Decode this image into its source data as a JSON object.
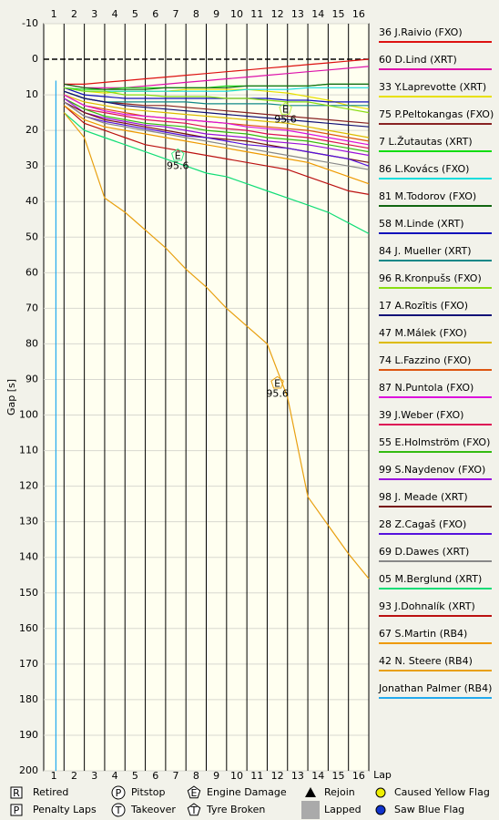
{
  "chart_data": {
    "type": "line",
    "y_label": "Gap [s]",
    "x_label": "Lap",
    "x": [
      1,
      2,
      3,
      4,
      5,
      6,
      7,
      8,
      9,
      10,
      11,
      12,
      13,
      14,
      15,
      16
    ],
    "xlim": [
      0,
      16
    ],
    "xticks": [
      1,
      2,
      3,
      4,
      5,
      6,
      7,
      8,
      9,
      10,
      11,
      12,
      13,
      14,
      15,
      16
    ],
    "ylim": [
      200,
      -10
    ],
    "yticks": [
      -10,
      0,
      10,
      20,
      30,
      40,
      50,
      60,
      70,
      80,
      90,
      100,
      110,
      120,
      130,
      140,
      150,
      160,
      170,
      180,
      190,
      200
    ],
    "grid": true,
    "legend": "right",
    "series": [
      {
        "name": "36 J.Raivio (FXO)",
        "color": "#dd1111",
        "values": [
          7,
          7,
          6.5,
          6,
          5.5,
          5,
          4.5,
          4,
          3.5,
          3,
          2.5,
          2,
          1.5,
          1,
          0.5,
          0
        ]
      },
      {
        "name": "60 D.Lind (XRT)",
        "color": "#dd11aa",
        "values": [
          7,
          8,
          8,
          8,
          7.5,
          7,
          6.5,
          6,
          5.5,
          5,
          4.5,
          4,
          3.5,
          3,
          2.5,
          2
        ]
      },
      {
        "name": "33 Y.Laprevotte (XRT)",
        "color": "#e8e000",
        "values": [
          8,
          9,
          9.5,
          9,
          9,
          9,
          8.5,
          8.5,
          8.5,
          8.5,
          9,
          9.5,
          10.5,
          11.5,
          13,
          14
        ]
      },
      {
        "name": "75 P.Peltokangas (FXO)",
        "color": "#882222",
        "values": [
          9,
          11,
          12,
          12.5,
          13,
          13,
          13.5,
          14,
          14.5,
          15,
          15.5,
          16,
          16.5,
          17,
          17.5,
          18
        ]
      },
      {
        "name": "7 L.Žutautas (XRT)",
        "color": "#11dd11",
        "values": [
          8,
          8.5,
          8.5,
          8,
          8,
          8,
          8,
          8,
          7.5,
          7.5,
          7.5,
          7.5,
          7.5,
          7,
          7,
          7
        ]
      },
      {
        "name": "86 L.Kovács (FXO)",
        "color": "#11dddd",
        "values": [
          8,
          9,
          9,
          9,
          9,
          9,
          9,
          9,
          9,
          8.5,
          8.5,
          8.5,
          8,
          8,
          8,
          8
        ]
      },
      {
        "name": "81 M.Todorov (FXO)",
        "color": "#116611",
        "values": [
          7,
          8,
          8.5,
          8.5,
          8.5,
          8,
          8,
          8,
          8,
          7.5,
          7.5,
          7.5,
          7.5,
          7,
          7,
          7
        ]
      },
      {
        "name": "58 M.Linde (XRT)",
        "color": "#1111bb",
        "values": [
          8,
          10,
          10.5,
          11,
          11,
          11,
          11,
          11,
          11,
          11,
          11,
          11.5,
          11.5,
          12,
          12,
          12
        ]
      },
      {
        "name": "84 J. Mueller (XRT)",
        "color": "#118888",
        "values": [
          9,
          11,
          12,
          12,
          12,
          12,
          12,
          12.5,
          12.5,
          12.5,
          12.5,
          13,
          13,
          13,
          13,
          13
        ]
      },
      {
        "name": "96 R.Kronpušs (FXO)",
        "color": "#88dd11",
        "values": [
          8,
          9,
          9,
          10,
          10,
          10.5,
          10.5,
          10.5,
          11,
          11,
          11.5,
          12,
          12,
          13,
          14,
          15
        ]
      },
      {
        "name": "17 A.Rozītis (FXO)",
        "color": "#111177",
        "values": [
          9,
          11,
          12,
          13,
          13.5,
          14,
          14.5,
          15,
          15.5,
          16,
          16.5,
          17,
          17.5,
          18,
          18.5,
          19
        ]
      },
      {
        "name": "47 M.Málek (FXO)",
        "color": "#ddbb00",
        "values": [
          10,
          12,
          13,
          14,
          14.5,
          15,
          15.5,
          16,
          16.5,
          17,
          17.5,
          18,
          19,
          20,
          21,
          22
        ]
      },
      {
        "name": "74 L.Fazzino (FXO)",
        "color": "#dd5511",
        "values": [
          10,
          13,
          14,
          15,
          16,
          16.5,
          17,
          17.5,
          18,
          18.5,
          19,
          19.5,
          20,
          21,
          22,
          23
        ]
      },
      {
        "name": "87 N.Puntola (FXO)",
        "color": "#dd11dd",
        "values": [
          10,
          13,
          14.5,
          15.5,
          16,
          16.5,
          17,
          17.5,
          18,
          19,
          19.5,
          20,
          21,
          22,
          23,
          24
        ]
      },
      {
        "name": "39 J.Weber (FXO)",
        "color": "#dd1155",
        "values": [
          11,
          14,
          15,
          16,
          17,
          17.5,
          18,
          19,
          19.5,
          20,
          21,
          21.5,
          22,
          23,
          24,
          25
        ]
      },
      {
        "name": "55 E.Holmström (FXO)",
        "color": "#33bb11",
        "values": [
          11,
          14,
          16,
          17,
          18,
          18.5,
          19,
          20,
          20.5,
          21,
          22,
          22.5,
          23,
          24,
          25,
          26
        ]
      },
      {
        "name": "99 S.Naydenov (FXO)",
        "color": "#9911dd",
        "values": [
          11,
          15,
          16.5,
          17.5,
          18.5,
          19,
          20,
          21,
          21.5,
          22,
          23,
          23.5,
          24,
          25,
          26,
          27
        ]
      },
      {
        "name": "98 J. Meade (XRT)",
        "color": "#771111",
        "values": [
          12,
          15,
          17,
          18,
          19,
          20,
          21,
          22,
          22.5,
          23,
          24,
          25,
          26,
          27,
          28,
          29
        ]
      },
      {
        "name": "28 Z.Cagaš (FXO)",
        "color": "#5511dd",
        "values": [
          12,
          16,
          17.5,
          18.5,
          19.5,
          20.5,
          21.5,
          22,
          23,
          24,
          24.5,
          25,
          26,
          27,
          28,
          30
        ]
      },
      {
        "name": "69 D.Dawes (XRT)",
        "color": "#888888",
        "values": [
          12,
          16,
          18,
          19,
          20,
          21,
          22,
          23,
          24,
          25,
          26,
          27,
          28,
          29,
          30,
          31
        ]
      },
      {
        "name": "05 M.Berglund (XRT)",
        "color": "#11dd77",
        "values": [
          15,
          20,
          22,
          24,
          26,
          28,
          30,
          32,
          33,
          35,
          37,
          39,
          41,
          43,
          46,
          49
        ]
      },
      {
        "name": "93 J.Dohnalík (XRT)",
        "color": "#bb1111",
        "values": [
          13,
          18,
          20,
          22,
          24,
          25,
          26,
          27,
          28,
          29,
          30,
          31,
          33,
          35,
          37,
          38
        ]
      },
      {
        "name": "67 S.Martin (RB4)",
        "color": "#ee9900",
        "values": [
          13,
          17,
          19,
          20,
          21,
          22,
          23,
          24,
          25,
          26,
          27,
          28,
          29,
          31,
          33,
          35
        ]
      },
      {
        "name": "42 N. Steere (RB4)",
        "color": "#e8a010",
        "values": [
          15,
          22,
          39,
          43,
          48,
          53,
          59,
          64,
          70,
          75,
          80,
          95,
          123,
          131,
          139,
          146
        ]
      },
      {
        "name": "Jonathan Palmer (RB4)",
        "color": "#22aaee",
        "x": [
          0.6,
          0.6
        ],
        "values": [
          6,
          200
        ]
      }
    ],
    "annotations": [
      {
        "x": 6.6,
        "y": 27,
        "symbol": "E",
        "label": "95.6",
        "color": "#33ee88"
      },
      {
        "x": 11.9,
        "y": 14,
        "symbol": "E",
        "label": "95.6",
        "color": "#bbee44"
      },
      {
        "x": 11.5,
        "y": 91,
        "symbol": "E",
        "label": "95.6",
        "color": "#e8a010"
      }
    ],
    "key": [
      {
        "symbol": "R",
        "label": "Retired"
      },
      {
        "symbol": "P",
        "label": "Penalty Laps"
      },
      {
        "symbol": "P",
        "label": "Pitstop"
      },
      {
        "symbol": "T",
        "label": "Takeover"
      },
      {
        "symbol": "E",
        "label": "Engine Damage"
      },
      {
        "symbol": "T",
        "label": "Tyre Broken"
      },
      {
        "label": "Rejoin"
      },
      {
        "label": "Lapped"
      },
      {
        "label": "Caused Yellow Flag"
      },
      {
        "label": "Saw Blue Flag"
      }
    ]
  }
}
